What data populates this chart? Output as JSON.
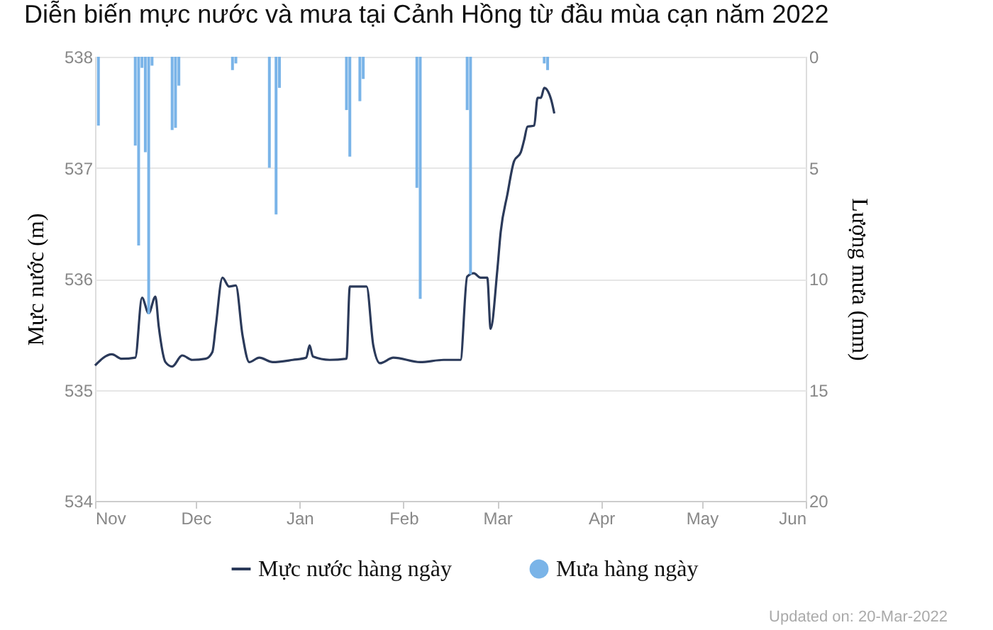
{
  "chart_data": {
    "type": "line",
    "title": "Diễn biến mực nước và mưa tại Cảnh Hồng từ đầu mùa cạn năm 2022",
    "ylabel": "Mực nước (m)",
    "y2label": "Lượng mưa (mm)",
    "xlim": [
      "2021-11-01",
      "2022-06-01"
    ],
    "xticks": [
      {
        "value": "2021-11-01",
        "label": "Nov"
      },
      {
        "value": "2021-12-01",
        "label": "Dec"
      },
      {
        "value": "2022-01-01",
        "label": "Jan"
      },
      {
        "value": "2022-02-01",
        "label": "Feb"
      },
      {
        "value": "2022-03-01",
        "label": "Mar"
      },
      {
        "value": "2022-04-01",
        "label": "Apr"
      },
      {
        "value": "2022-05-01",
        "label": "May"
      },
      {
        "value": "2022-06-01",
        "label": "Jun"
      }
    ],
    "ylim": [
      534,
      538
    ],
    "yticks": [
      534,
      535,
      536,
      537,
      538
    ],
    "y2lim": [
      20,
      0
    ],
    "y2ticks": [
      0,
      5,
      10,
      15,
      20
    ],
    "grid": "y",
    "legend": "bottom",
    "annotations": [
      "Updated on: 20-Mar-2022"
    ],
    "series": [
      {
        "name": "Mực nước hàng ngày",
        "color": "#2b3a5a",
        "x": [
          "2021-11-01",
          "2021-11-06",
          "2021-11-09",
          "2021-11-13",
          "2021-11-15",
          "2021-11-17",
          "2021-11-19",
          "2021-11-20",
          "2021-11-22",
          "2021-11-24",
          "2021-11-27",
          "2021-11-30",
          "2021-12-04",
          "2021-12-06",
          "2021-12-07",
          "2021-12-09",
          "2021-12-11",
          "2021-12-13",
          "2021-12-15",
          "2021-12-17",
          "2021-12-20",
          "2021-12-24",
          "2021-12-30",
          "2022-01-03",
          "2022-01-04",
          "2022-01-05",
          "2022-01-10",
          "2022-01-15",
          "2022-01-16",
          "2022-01-21",
          "2022-01-23",
          "2022-01-25",
          "2022-01-29",
          "2022-02-06",
          "2022-02-13",
          "2022-02-18",
          "2022-02-20",
          "2022-02-22",
          "2022-02-24",
          "2022-02-26",
          "2022-02-27",
          "2022-03-01",
          "2022-03-02",
          "2022-03-04",
          "2022-03-06",
          "2022-03-08",
          "2022-03-09",
          "2022-03-10",
          "2022-03-12",
          "2022-03-13",
          "2022-03-14",
          "2022-03-15",
          "2022-03-17",
          "2022-03-18"
        ],
        "values": [
          535.22,
          535.32,
          535.28,
          535.29,
          535.83,
          535.69,
          535.84,
          535.57,
          535.25,
          535.21,
          535.31,
          535.27,
          535.28,
          535.34,
          535.57,
          536.01,
          535.93,
          535.94,
          535.49,
          535.25,
          535.29,
          535.25,
          535.27,
          535.29,
          535.4,
          535.3,
          535.27,
          535.28,
          535.93,
          535.93,
          535.4,
          535.24,
          535.29,
          535.25,
          535.27,
          535.27,
          536.02,
          536.05,
          536.01,
          536.01,
          535.55,
          536.08,
          536.42,
          536.76,
          537.06,
          537.14,
          537.25,
          537.37,
          537.38,
          537.63,
          537.63,
          537.72,
          537.62,
          537.49
        ]
      },
      {
        "name": "Mưa hàng ngày",
        "type": "bar",
        "axis": "y2",
        "color": "#7ab4e8",
        "x": [
          "2021-11-02",
          "2021-11-13",
          "2021-11-14",
          "2021-11-15",
          "2021-11-16",
          "2021-11-17",
          "2021-11-18",
          "2021-11-24",
          "2021-11-25",
          "2021-11-26",
          "2021-12-12",
          "2021-12-13",
          "2021-12-23",
          "2021-12-25",
          "2021-12-26",
          "2022-01-15",
          "2022-01-16",
          "2022-01-19",
          "2022-01-20",
          "2022-02-05",
          "2022-02-06",
          "2022-02-20",
          "2022-02-21",
          "2022-03-15",
          "2022-03-16"
        ],
        "values": [
          3.1,
          4.0,
          8.5,
          0.5,
          4.3,
          11.6,
          0.4,
          3.3,
          3.2,
          1.3,
          0.6,
          0.3,
          5.0,
          7.1,
          1.4,
          2.4,
          4.5,
          2.0,
          1.0,
          5.9,
          10.9,
          2.4,
          9.8,
          0.3,
          0.6
        ]
      }
    ]
  }
}
